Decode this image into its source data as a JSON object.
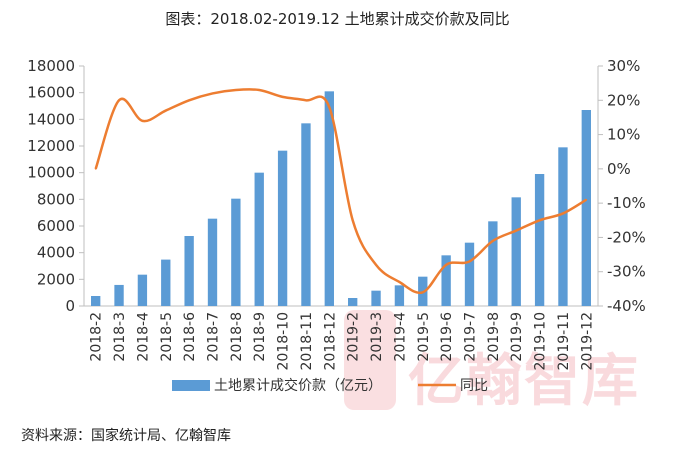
{
  "title": "图表：2018.02-2019.12 土地累计成交价款及同比",
  "source": "资料来源：国家统计局、亿翰智库",
  "watermark_text": "亿翰智库",
  "colors": {
    "bar": "#5B9BD5",
    "line": "#ED7D31",
    "axis": "#bfbfbf"
  },
  "chart_data": {
    "type": "bar+line",
    "title": "图表：2018.02-2019.12 土地累计成交价款及同比",
    "categories": [
      "2018-2",
      "2018-3",
      "2018-4",
      "2018-5",
      "2018-6",
      "2018-7",
      "2018-8",
      "2018-9",
      "2018-10",
      "2018-11",
      "2018-12",
      "2019-2",
      "2019-3",
      "2019-4",
      "2019-5",
      "2019-6",
      "2019-7",
      "2019-8",
      "2019-9",
      "2019-10",
      "2019-11",
      "2019-12"
    ],
    "series": [
      {
        "name": "土地累计成交价款（亿元）",
        "type": "bar",
        "axis": "left",
        "values": [
          750,
          1580,
          2350,
          3480,
          5250,
          6550,
          8050,
          10000,
          11650,
          13700,
          16100,
          600,
          1150,
          1550,
          2200,
          3800,
          4750,
          6350,
          8150,
          9900,
          11900,
          14700
        ]
      },
      {
        "name": "同比",
        "type": "line",
        "axis": "right",
        "values": [
          0,
          20,
          14,
          17,
          20,
          22,
          23,
          23,
          21,
          20,
          18,
          -15,
          -28,
          -33,
          -36,
          -28,
          -27,
          -21,
          -18,
          -15,
          -13,
          -9
        ]
      }
    ],
    "y_left": {
      "min": 0,
      "max": 18000,
      "step": 2000,
      "tick_labels": [
        "0",
        "2000",
        "4000",
        "6000",
        "8000",
        "10000",
        "12000",
        "14000",
        "16000",
        "18000"
      ]
    },
    "y_right": {
      "min": -40,
      "max": 30,
      "step": 10,
      "tick_labels": [
        "-40%",
        "-30%",
        "-20%",
        "-10%",
        "0%",
        "10%",
        "20%",
        "30%"
      ]
    },
    "legend": [
      "土地累计成交价款（亿元）",
      "同比"
    ],
    "legend_position": "bottom",
    "grid": false
  }
}
